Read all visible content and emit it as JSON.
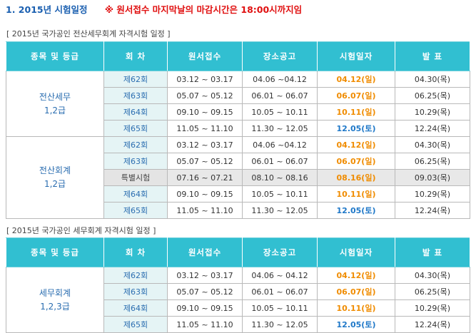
{
  "heading": {
    "title": "1. 2015년  시험일정",
    "note": "※ 원서접수 마지막날의 마감시간은 18:00시까지임"
  },
  "colors": {
    "header_bg": "#31bfd1",
    "exam_date_orange": "#f08c00",
    "exam_date_blue": "#1f78c8",
    "category_text": "#2a6db0"
  },
  "columns": [
    "종목 및 등급",
    "회 차",
    "원서접수",
    "장소공고",
    "시험일자",
    "발 표"
  ],
  "sections": [
    {
      "title": "[ 2015년 국가공인 전산세무회계 자격시험 일정 ]",
      "groups": [
        {
          "category": [
            "전산세무",
            "1,2급"
          ],
          "rows": [
            {
              "round": "제62회",
              "apply": "03.12 ~ 03.17",
              "notice": "04.06 ~04.12",
              "exam": "04.12(일)",
              "result": "04.30(목)"
            },
            {
              "round": "제63회",
              "apply": "05.07 ~ 05.12",
              "notice": "06.01 ~ 06.07",
              "exam": "06.07(일)",
              "result": "06.25(목)"
            },
            {
              "round": "제64회",
              "apply": "09.10 ~ 09.15",
              "notice": "10.05 ~ 10.11",
              "exam": "10.11(일)",
              "result": "10.29(목)"
            },
            {
              "round": "제65회",
              "apply": "11.05 ~ 11.10",
              "notice": "11.30 ~ 12.05",
              "exam": "12.05(토)",
              "result": "12.24(목)"
            }
          ]
        },
        {
          "category": [
            "전산회계",
            "1,2급"
          ],
          "rows": [
            {
              "round": "제62회",
              "apply": "03.12 ~ 03.17",
              "notice": "04.06 ~04.12",
              "exam": "04.12(일)",
              "result": "04.30(목)"
            },
            {
              "round": "제63회",
              "apply": "05.07 ~ 05.12",
              "notice": "06.01 ~ 06.07",
              "exam": "06.07(일)",
              "result": "06.25(목)"
            },
            {
              "round": "특별시험",
              "apply": "07.16 ~ 07.21",
              "notice": "08.10 ~ 08.16",
              "exam": "08.16(일)",
              "result": "09.03(목)",
              "special": true
            },
            {
              "round": "제64회",
              "apply": "09.10 ~ 09.15",
              "notice": "10.05 ~ 10.11",
              "exam": "10.11(일)",
              "result": "10.29(목)"
            },
            {
              "round": "제65회",
              "apply": "11.05 ~ 11.10",
              "notice": "11.30 ~ 12.05",
              "exam": "12.05(토)",
              "result": "12.24(목)"
            }
          ]
        }
      ]
    },
    {
      "title": "[ 2015년 국가공인 세무회계 자격시험 일정 ]",
      "groups": [
        {
          "category": [
            "세무회계",
            "1,2,3급"
          ],
          "rows": [
            {
              "round": "제62회",
              "apply": "03.12 ~ 03.17",
              "notice": "04.06 ~ 04.12",
              "exam": "04.12(일)",
              "result": "04.30(목)"
            },
            {
              "round": "제63회",
              "apply": "05.07 ~ 05.12",
              "notice": "06.01 ~ 06.07",
              "exam": "06.07(일)",
              "result": "06.25(목)"
            },
            {
              "round": "제64회",
              "apply": "09.10 ~ 09.15",
              "notice": "10.05 ~ 10.11",
              "exam": "10.11(일)",
              "result": "10.29(목)"
            },
            {
              "round": "제65회",
              "apply": "11.05 ~ 11.10",
              "notice": "11.30 ~ 12.05",
              "exam": "12.05(토)",
              "result": "12.24(목)"
            }
          ]
        }
      ]
    }
  ]
}
